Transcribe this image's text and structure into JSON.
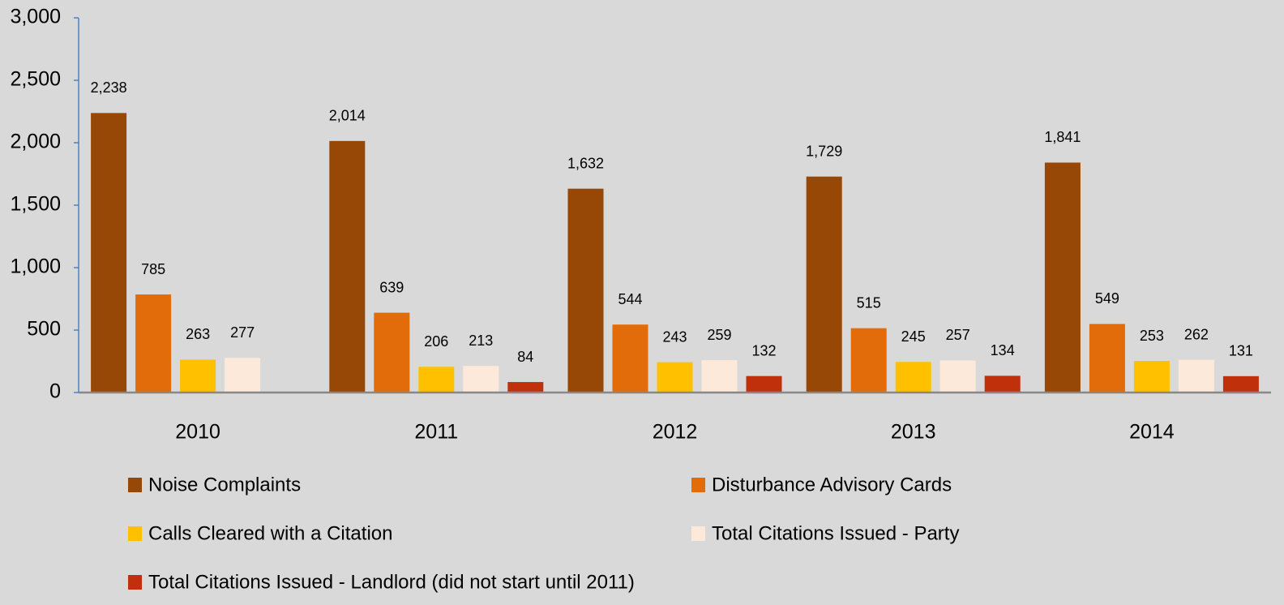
{
  "chart_data": {
    "type": "bar",
    "categories": [
      "2010",
      "2011",
      "2012",
      "2013",
      "2014"
    ],
    "series": [
      {
        "name": "Noise Complaints",
        "color": "#974706",
        "values": [
          2238,
          2014,
          1632,
          1729,
          1841
        ],
        "value_labels": [
          "2,238",
          "2,014",
          "1,632",
          "1,729",
          "1,841"
        ]
      },
      {
        "name": "Disturbance Advisory Cards",
        "color": "#e36c0a",
        "values": [
          785,
          639,
          544,
          515,
          549
        ]
      },
      {
        "name": "Calls Cleared with a Citation",
        "color": "#ffc000",
        "values": [
          263,
          206,
          243,
          245,
          253
        ]
      },
      {
        "name": "Total Citations Issued - Party",
        "color": "#fde9d9",
        "values": [
          277,
          213,
          259,
          257,
          262
        ]
      },
      {
        "name": "Total Citations Issued - Landlord (did not start until 2011)",
        "color": "#c0300a",
        "values": [
          null,
          84,
          132,
          134,
          131
        ]
      }
    ],
    "ylim": [
      0,
      3000
    ],
    "yticks": [
      0,
      500,
      {
        "value": 1000,
        "label": "1,000"
      },
      {
        "value": 1500,
        "label": "1,500"
      },
      {
        "value": 2000,
        "label": "2,000"
      },
      {
        "value": 2500,
        "label": "2,500"
      },
      {
        "value": 3000,
        "label": "3,000"
      }
    ],
    "grid": false,
    "legend": "bottom"
  }
}
